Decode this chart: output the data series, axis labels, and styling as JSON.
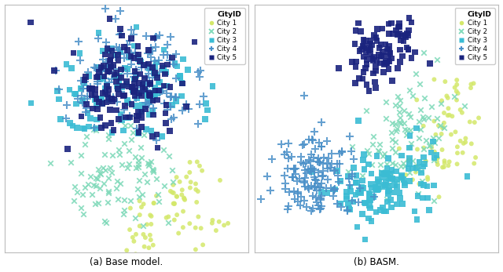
{
  "title_left": "(a) Base model.",
  "title_right": "(b) BASM.",
  "legend_title": "CityID",
  "cities": [
    "City 1",
    "City 2",
    "City 3",
    "City 4",
    "City 5"
  ],
  "colors": [
    "#d4e86a",
    "#7dd9b8",
    "#3bbcd4",
    "#4a90c8",
    "#1a237e"
  ],
  "markers": [
    "o",
    "x",
    "s",
    "+",
    "s"
  ],
  "marker_sizes": [
    18,
    22,
    30,
    50,
    30
  ],
  "marker_lws": [
    0,
    1.3,
    0,
    1.5,
    0
  ],
  "figsize": [
    6.4,
    3.47
  ],
  "dpi": 100
}
